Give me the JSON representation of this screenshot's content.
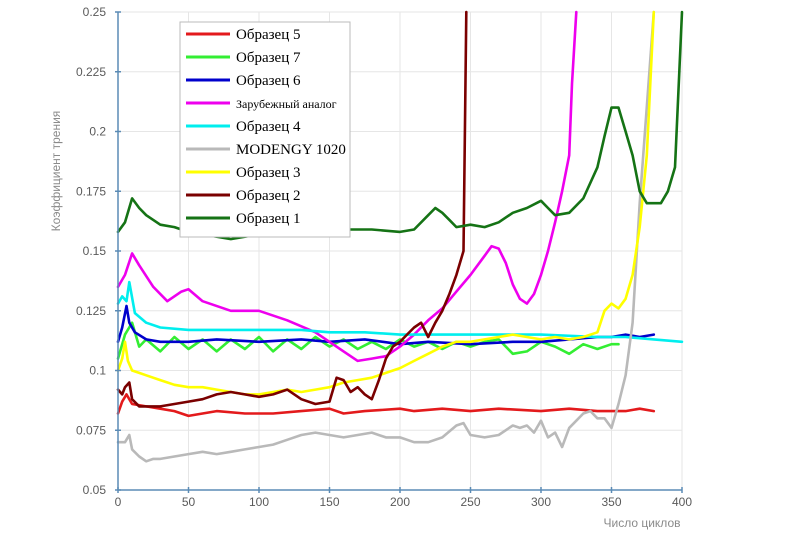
{
  "chart_data": {
    "type": "line",
    "xlabel": "Число циклов",
    "ylabel": "Коэффициент трения",
    "xlim": [
      0,
      400
    ],
    "ylim": [
      0.05,
      0.25
    ],
    "x_ticks": [
      0,
      50,
      100,
      150,
      200,
      250,
      300,
      350,
      400
    ],
    "y_ticks": [
      0.05,
      0.075,
      0.1,
      0.125,
      0.15,
      0.175,
      0.2,
      0.225,
      0.25
    ],
    "grid": true,
    "legend_position": "top-left",
    "series": [
      {
        "name": "Образец 5",
        "color": "#e31a1c",
        "x": [
          0,
          3,
          6,
          10,
          20,
          30,
          40,
          50,
          70,
          90,
          110,
          130,
          150,
          160,
          175,
          200,
          210,
          230,
          250,
          270,
          300,
          320,
          340,
          360,
          370,
          380
        ],
        "y": [
          0.082,
          0.087,
          0.09,
          0.086,
          0.085,
          0.084,
          0.083,
          0.081,
          0.083,
          0.082,
          0.082,
          0.083,
          0.084,
          0.082,
          0.083,
          0.084,
          0.083,
          0.084,
          0.083,
          0.084,
          0.083,
          0.084,
          0.083,
          0.083,
          0.084,
          0.083
        ]
      },
      {
        "name": "Образец 7",
        "color": "#33ee33",
        "x": [
          0,
          5,
          10,
          15,
          20,
          30,
          40,
          50,
          60,
          70,
          80,
          90,
          100,
          110,
          120,
          130,
          140,
          150,
          160,
          170,
          180,
          190,
          200,
          210,
          220,
          230,
          240,
          250,
          260,
          270,
          280,
          290,
          300,
          310,
          320,
          330,
          340,
          350,
          355
        ],
        "y": [
          0.105,
          0.115,
          0.12,
          0.11,
          0.113,
          0.108,
          0.114,
          0.109,
          0.113,
          0.108,
          0.113,
          0.109,
          0.114,
          0.108,
          0.113,
          0.109,
          0.114,
          0.11,
          0.113,
          0.109,
          0.112,
          0.109,
          0.113,
          0.11,
          0.112,
          0.109,
          0.112,
          0.11,
          0.112,
          0.113,
          0.107,
          0.108,
          0.112,
          0.11,
          0.107,
          0.111,
          0.109,
          0.111,
          0.111
        ]
      },
      {
        "name": "Образец 6",
        "color": "#0000cc",
        "x": [
          0,
          3,
          6,
          8,
          12,
          20,
          30,
          50,
          70,
          100,
          130,
          150,
          175,
          200,
          220,
          250,
          280,
          300,
          320,
          340,
          350,
          360,
          370,
          380
        ],
        "y": [
          0.112,
          0.118,
          0.127,
          0.12,
          0.116,
          0.113,
          0.112,
          0.112,
          0.113,
          0.112,
          0.113,
          0.112,
          0.113,
          0.111,
          0.112,
          0.111,
          0.112,
          0.112,
          0.113,
          0.114,
          0.114,
          0.115,
          0.114,
          0.115
        ]
      },
      {
        "name": "Зарубежный аналог",
        "color": "#ee00ee",
        "x": [
          0,
          5,
          10,
          15,
          25,
          35,
          45,
          50,
          60,
          80,
          100,
          120,
          140,
          160,
          170,
          180,
          190,
          200,
          210,
          220,
          230,
          240,
          250,
          260,
          265,
          270,
          275,
          280,
          285,
          290,
          295,
          300,
          305,
          310,
          315,
          320,
          322,
          325
        ],
        "y": [
          0.135,
          0.14,
          0.149,
          0.144,
          0.135,
          0.129,
          0.133,
          0.134,
          0.129,
          0.125,
          0.125,
          0.121,
          0.116,
          0.108,
          0.104,
          0.105,
          0.106,
          0.11,
          0.115,
          0.121,
          0.126,
          0.133,
          0.14,
          0.148,
          0.152,
          0.151,
          0.145,
          0.136,
          0.13,
          0.128,
          0.132,
          0.14,
          0.15,
          0.162,
          0.175,
          0.19,
          0.22,
          0.26
        ]
      },
      {
        "name": "Образец 4",
        "color": "#00eeee",
        "x": [
          0,
          3,
          6,
          8,
          12,
          20,
          30,
          50,
          70,
          100,
          130,
          150,
          175,
          200,
          220,
          250,
          300,
          340,
          360,
          380,
          400
        ],
        "y": [
          0.128,
          0.131,
          0.129,
          0.137,
          0.124,
          0.12,
          0.118,
          0.117,
          0.117,
          0.117,
          0.117,
          0.116,
          0.116,
          0.115,
          0.115,
          0.115,
          0.115,
          0.114,
          0.114,
          0.113,
          0.112
        ]
      },
      {
        "name": "MODENGY 1020",
        "color": "#b9b9b9",
        "x": [
          0,
          5,
          8,
          10,
          15,
          20,
          25,
          30,
          40,
          50,
          60,
          70,
          80,
          90,
          100,
          110,
          120,
          130,
          140,
          150,
          160,
          170,
          180,
          190,
          200,
          210,
          220,
          230,
          240,
          245,
          250,
          260,
          270,
          280,
          285,
          290,
          295,
          300,
          305,
          310,
          315,
          320,
          325,
          330,
          335,
          340,
          345,
          350,
          355,
          360,
          365,
          370,
          380
        ],
        "y": [
          0.07,
          0.07,
          0.073,
          0.067,
          0.064,
          0.062,
          0.063,
          0.063,
          0.064,
          0.065,
          0.066,
          0.065,
          0.066,
          0.067,
          0.068,
          0.069,
          0.071,
          0.073,
          0.074,
          0.073,
          0.072,
          0.073,
          0.074,
          0.072,
          0.072,
          0.07,
          0.07,
          0.072,
          0.077,
          0.078,
          0.073,
          0.072,
          0.073,
          0.077,
          0.076,
          0.077,
          0.074,
          0.079,
          0.072,
          0.074,
          0.068,
          0.076,
          0.079,
          0.082,
          0.083,
          0.08,
          0.08,
          0.076,
          0.086,
          0.098,
          0.12,
          0.17,
          0.27
        ]
      },
      {
        "name": "Образец 3",
        "color": "#ffff00",
        "x": [
          0,
          3,
          5,
          7,
          10,
          15,
          20,
          30,
          40,
          50,
          60,
          70,
          80,
          90,
          100,
          110,
          120,
          130,
          140,
          150,
          160,
          170,
          180,
          190,
          200,
          210,
          220,
          230,
          240,
          250,
          260,
          270,
          280,
          290,
          300,
          310,
          320,
          330,
          340,
          345,
          350,
          355,
          360,
          365,
          370,
          375,
          380
        ],
        "y": [
          0.1,
          0.105,
          0.112,
          0.104,
          0.1,
          0.099,
          0.098,
          0.096,
          0.094,
          0.093,
          0.093,
          0.092,
          0.091,
          0.09,
          0.09,
          0.091,
          0.092,
          0.091,
          0.092,
          0.093,
          0.095,
          0.096,
          0.097,
          0.099,
          0.101,
          0.104,
          0.107,
          0.11,
          0.112,
          0.112,
          0.113,
          0.114,
          0.115,
          0.114,
          0.113,
          0.114,
          0.113,
          0.114,
          0.116,
          0.125,
          0.128,
          0.126,
          0.13,
          0.14,
          0.16,
          0.19,
          0.26
        ]
      },
      {
        "name": "Образец 2",
        "color": "#7a0000",
        "x": [
          0,
          3,
          5,
          8,
          10,
          15,
          20,
          30,
          40,
          50,
          60,
          70,
          80,
          90,
          100,
          110,
          120,
          130,
          140,
          150,
          155,
          160,
          165,
          170,
          175,
          180,
          185,
          190,
          195,
          200,
          205,
          210,
          215,
          220,
          225,
          230,
          235,
          240,
          245,
          247
        ],
        "y": [
          0.092,
          0.09,
          0.093,
          0.095,
          0.088,
          0.085,
          0.085,
          0.085,
          0.086,
          0.087,
          0.088,
          0.09,
          0.091,
          0.09,
          0.089,
          0.09,
          0.092,
          0.088,
          0.086,
          0.087,
          0.097,
          0.096,
          0.091,
          0.093,
          0.09,
          0.088,
          0.096,
          0.105,
          0.11,
          0.112,
          0.115,
          0.118,
          0.12,
          0.114,
          0.12,
          0.125,
          0.132,
          0.14,
          0.15,
          0.25
        ]
      },
      {
        "name": "Образец 1",
        "color": "#157315",
        "x": [
          0,
          5,
          10,
          15,
          20,
          30,
          40,
          50,
          60,
          70,
          80,
          90,
          100,
          120,
          140,
          160,
          180,
          200,
          210,
          220,
          225,
          230,
          235,
          240,
          250,
          260,
          270,
          280,
          290,
          300,
          305,
          310,
          320,
          330,
          340,
          345,
          350,
          355,
          360,
          365,
          370,
          375,
          380,
          385,
          390,
          395,
          400
        ],
        "y": [
          0.158,
          0.162,
          0.172,
          0.168,
          0.165,
          0.161,
          0.16,
          0.158,
          0.157,
          0.156,
          0.155,
          0.156,
          0.157,
          0.158,
          0.158,
          0.159,
          0.159,
          0.158,
          0.159,
          0.165,
          0.168,
          0.166,
          0.163,
          0.16,
          0.161,
          0.16,
          0.162,
          0.166,
          0.168,
          0.171,
          0.168,
          0.165,
          0.166,
          0.172,
          0.185,
          0.198,
          0.21,
          0.21,
          0.2,
          0.19,
          0.175,
          0.17,
          0.17,
          0.17,
          0.175,
          0.185,
          0.25
        ]
      }
    ]
  }
}
